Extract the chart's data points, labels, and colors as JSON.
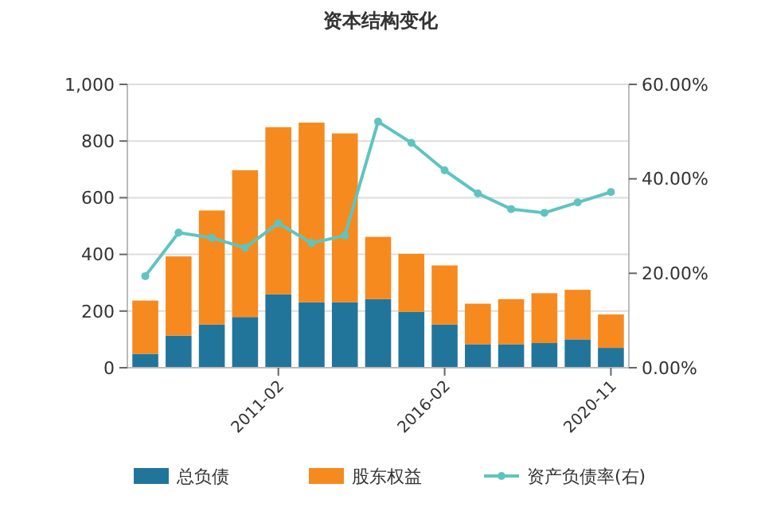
{
  "chart_data": {
    "type": "bar",
    "title": "资本结构变化",
    "stacked": true,
    "categories": [
      null,
      null,
      null,
      null,
      "2011-02",
      null,
      null,
      null,
      null,
      "2016-02",
      null,
      null,
      null,
      null,
      "2020-11"
    ],
    "series": [
      {
        "name": "总负债",
        "color": "#21759b",
        "values": [
          49,
          113,
          152,
          179,
          259,
          231,
          231,
          242,
          197,
          152,
          83,
          83,
          87,
          100,
          70
        ]
      },
      {
        "name": "股东权益",
        "color": "#f68a1e",
        "values": [
          188,
          280,
          403,
          518,
          590,
          634,
          596,
          220,
          205,
          209,
          143,
          159,
          176,
          175,
          118
        ]
      },
      {
        "name": "资产负债率(右)",
        "type": "line",
        "axis": "y2",
        "color": "#5fc4bf",
        "values": [
          19.4,
          28.6,
          27.5,
          25.4,
          30.6,
          26.4,
          28.0,
          52.1,
          47.6,
          41.8,
          36.9,
          33.6,
          32.8,
          35.0,
          37.2
        ]
      }
    ],
    "ylim": [
      0,
      1000
    ],
    "yticks": [
      0,
      200,
      400,
      600,
      800,
      {
        "value": 1000,
        "label": "1,000"
      }
    ],
    "y2lim": [
      0,
      60
    ],
    "y2ticks": [
      {
        "value": 0,
        "label": "0.00%"
      },
      {
        "value": 20,
        "label": "20.00%"
      },
      {
        "value": 40,
        "label": "40.00%"
      },
      {
        "value": 60,
        "label": "60.00%"
      }
    ],
    "grid": "y",
    "legend": "bottom",
    "marker": "circle"
  }
}
